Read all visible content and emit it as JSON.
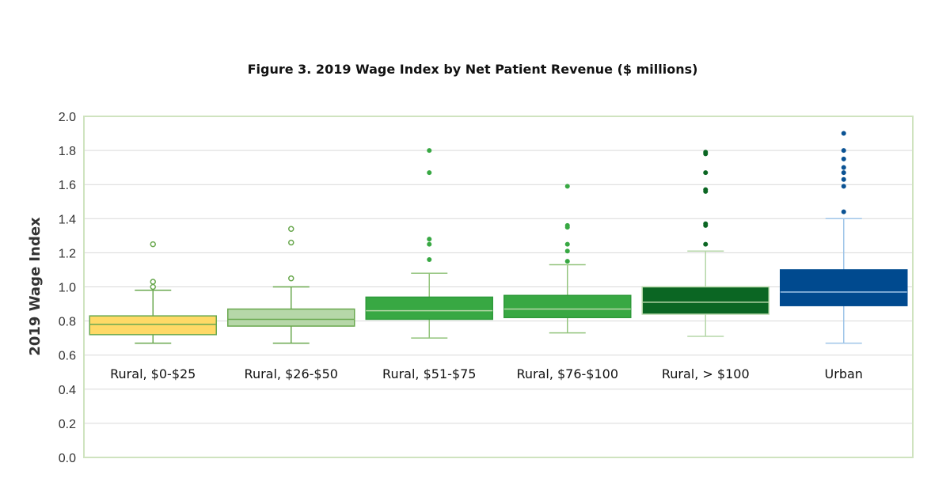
{
  "chart_data": {
    "type": "box",
    "title": "Figure 3. 2019 Wage Index by Net Patient Revenue ($ millions)",
    "xlabel": "",
    "ylabel": "2019 Wage Index",
    "ylim": [
      0,
      2.0
    ],
    "yticks": [
      "0.0",
      "0.2",
      "0.4",
      "0.6",
      "0.8",
      "1.0",
      "1.2",
      "1.4",
      "1.6",
      "1.8",
      "2.0"
    ],
    "grid": true,
    "categories": [
      "Rural, $0-$25",
      "Rural, $26-$50",
      "Rural, $51-$75",
      "Rural, $76-$100",
      "Rural, > $100",
      "Urban"
    ],
    "series": [
      {
        "name": "Rural, $0-$25",
        "min": 0.67,
        "q1": 0.72,
        "median": 0.78,
        "q3": 0.83,
        "max": 0.98,
        "outliers": [
          1.0,
          1.03,
          1.25
        ],
        "fill": "#ffd966",
        "stroke": "#6aa84f",
        "median_color": "#6aa84f",
        "whisker_color": "#6aa84f",
        "outlier_style": "hollow",
        "outlier_color": "#6aa84f"
      },
      {
        "name": "Rural, $26-$50",
        "min": 0.67,
        "q1": 0.77,
        "median": 0.81,
        "q3": 0.87,
        "max": 1.0,
        "outliers": [
          1.05,
          1.26,
          1.34
        ],
        "fill": "#b6d7a8",
        "stroke": "#6aa84f",
        "median_color": "#6aa84f",
        "whisker_color": "#6aa84f",
        "outlier_style": "hollow",
        "outlier_color": "#6aa84f"
      },
      {
        "name": "Rural, $51-$75",
        "min": 0.7,
        "q1": 0.81,
        "median": 0.86,
        "q3": 0.94,
        "max": 1.08,
        "outliers": [
          1.16,
          1.25,
          1.28,
          1.67,
          1.8
        ],
        "fill": "#38a843",
        "stroke": "#2e9a3a",
        "median_color": "#b6d7a8",
        "whisker_color": "#93c47d",
        "outlier_style": "filled",
        "outlier_color": "#38a843"
      },
      {
        "name": "Rural, $76-$100",
        "min": 0.73,
        "q1": 0.82,
        "median": 0.87,
        "q3": 0.95,
        "max": 1.13,
        "outliers": [
          1.15,
          1.21,
          1.25,
          1.35,
          1.36,
          1.59
        ],
        "fill": "#38a843",
        "stroke": "#2e9a3a",
        "median_color": "#b6d7a8",
        "whisker_color": "#93c47d",
        "outlier_style": "filled",
        "outlier_color": "#38a843"
      },
      {
        "name": "Rural, > $100",
        "min": 0.71,
        "q1": 0.84,
        "median": 0.91,
        "q3": 1.0,
        "max": 1.21,
        "outliers": [
          1.25,
          1.36,
          1.37,
          1.56,
          1.57,
          1.67,
          1.78,
          1.79
        ],
        "fill": "#0b6623",
        "stroke": "#b6d7a8",
        "median_color": "#b6d7a8",
        "whisker_color": "#b6d7a8",
        "outlier_style": "filled",
        "outlier_color": "#0b6623"
      },
      {
        "name": "Urban",
        "min": 0.67,
        "q1": 0.89,
        "median": 0.97,
        "q3": 1.1,
        "max": 1.4,
        "outliers": [
          1.44,
          1.59,
          1.63,
          1.67,
          1.7,
          1.75,
          1.8,
          1.9
        ],
        "fill": "#004a8f",
        "stroke": "#004a8f",
        "median_color": "#9fc5e8",
        "whisker_color": "#9fc5e8",
        "outlier_style": "filled",
        "outlier_color": "#0b5394"
      }
    ],
    "colors": {
      "plot_border": "#cfe3bf",
      "gridline": "#d9d9d9"
    }
  }
}
